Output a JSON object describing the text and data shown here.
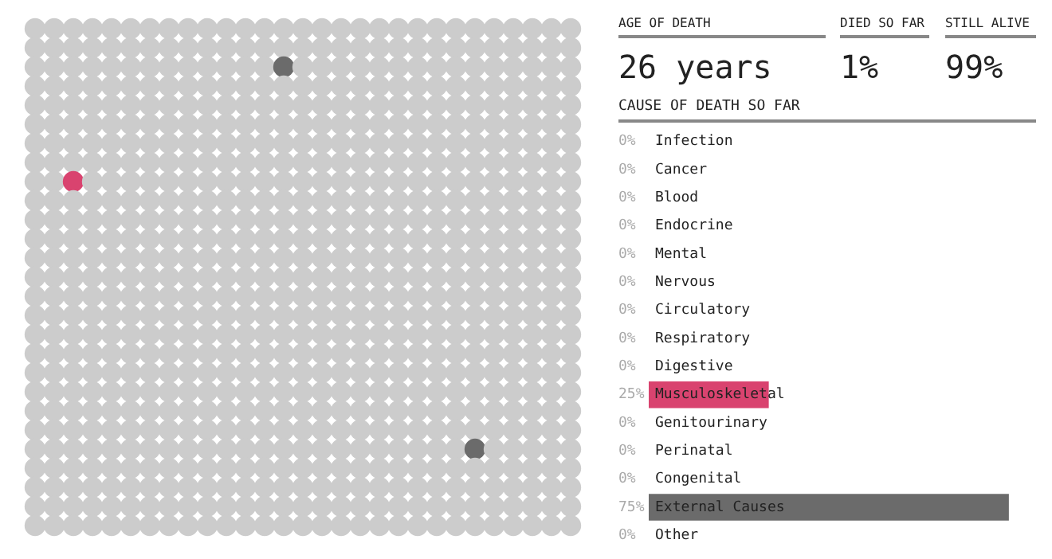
{
  "chart_data": {
    "type": "bar",
    "orientation": "horizontal",
    "title": "CAUSE OF DEATH SO FAR",
    "annotations": [
      "AGE OF DEATH",
      "26 years",
      "DIED SO FAR",
      "1%",
      "STILL ALIVE",
      "99%"
    ],
    "categories": [
      "Infection",
      "Cancer",
      "Blood",
      "Endocrine",
      "Mental",
      "Nervous",
      "Circulatory",
      "Respiratory",
      "Digestive",
      "Musculoskeletal",
      "Genitourinary",
      "Perinatal",
      "Congenital",
      "External Causes",
      "Other"
    ],
    "values": [
      0,
      0,
      0,
      0,
      0,
      0,
      0,
      0,
      0,
      25,
      0,
      0,
      0,
      75,
      0
    ],
    "value_labels": [
      "0%",
      "0%",
      "0%",
      "0%",
      "0%",
      "0%",
      "0%",
      "0%",
      "0%",
      "25%",
      "0%",
      "0%",
      "0%",
      "75%",
      "0%"
    ],
    "colors": [
      "#cccccc",
      "#cccccc",
      "#cccccc",
      "#cccccc",
      "#cccccc",
      "#cccccc",
      "#cccccc",
      "#cccccc",
      "#cccccc",
      "#d9436f",
      "#cccccc",
      "#cccccc",
      "#cccccc",
      "#6b6b6b",
      "#cccccc"
    ],
    "data_labels": false
  }
}
